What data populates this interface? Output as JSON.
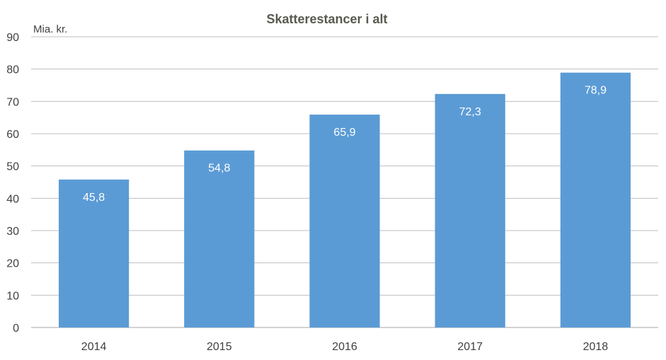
{
  "chart_data": {
    "type": "bar",
    "title": "Skatterestancer i alt",
    "unit_label": "Mia. kr.",
    "categories": [
      "2014",
      "2015",
      "2016",
      "2017",
      "2018"
    ],
    "values": [
      45.8,
      54.8,
      65.9,
      72.3,
      78.9
    ],
    "value_labels": [
      "45,8",
      "54,8",
      "65,9",
      "72,3",
      "78,9"
    ],
    "ylim": [
      0,
      90
    ],
    "yticks": [
      "0",
      "10",
      "20",
      "30",
      "40",
      "50",
      "60",
      "70",
      "80",
      "90"
    ],
    "grid": true,
    "bar_color": "#5b9bd5",
    "label_color": "#ffffff"
  }
}
